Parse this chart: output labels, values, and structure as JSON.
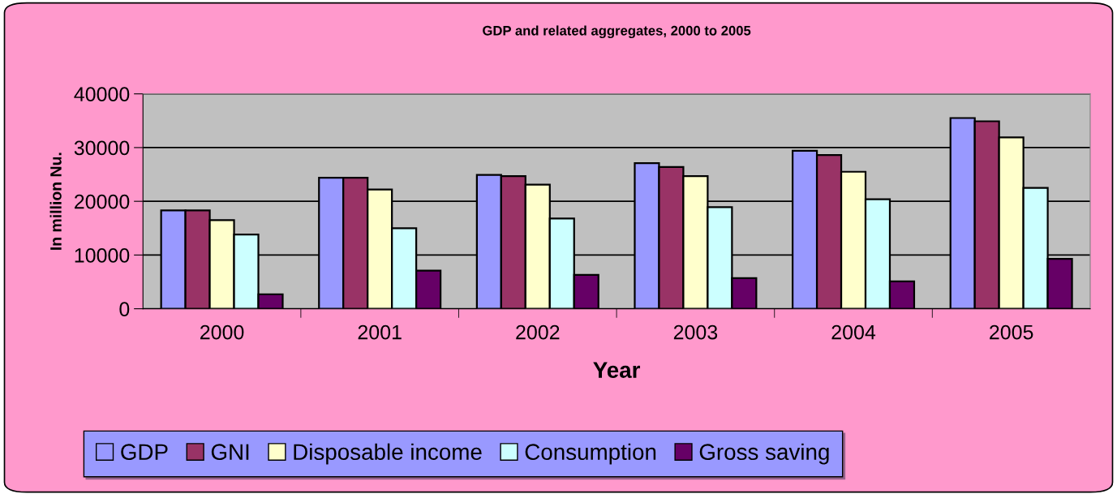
{
  "chart_data": {
    "type": "bar",
    "title": "GDP and related aggregates, 2000 to 2005",
    "xlabel": "Year",
    "ylabel": "In million Nu.",
    "categories": [
      "2000",
      "2001",
      "2002",
      "2003",
      "2004",
      "2005"
    ],
    "series": [
      {
        "name": "GDP",
        "color": "#9999ff",
        "values": [
          18300,
          24400,
          24900,
          27100,
          29400,
          35500
        ]
      },
      {
        "name": "GNI",
        "color": "#993366",
        "values": [
          18300,
          24400,
          24700,
          26400,
          28600,
          34900
        ]
      },
      {
        "name": "Disposable income",
        "color": "#ffffcc",
        "values": [
          16500,
          22200,
          23100,
          24700,
          25500,
          31900
        ]
      },
      {
        "name": "Consumption",
        "color": "#ccffff",
        "values": [
          13800,
          15000,
          16800,
          18900,
          20400,
          22500
        ]
      },
      {
        "name": "Gross saving",
        "color": "#660066",
        "values": [
          2700,
          7100,
          6300,
          5700,
          5100,
          9300
        ]
      }
    ],
    "ylim": [
      0,
      40000
    ],
    "yticks": [
      0,
      10000,
      20000,
      30000,
      40000
    ],
    "grid": "y",
    "legend": "bottom"
  }
}
